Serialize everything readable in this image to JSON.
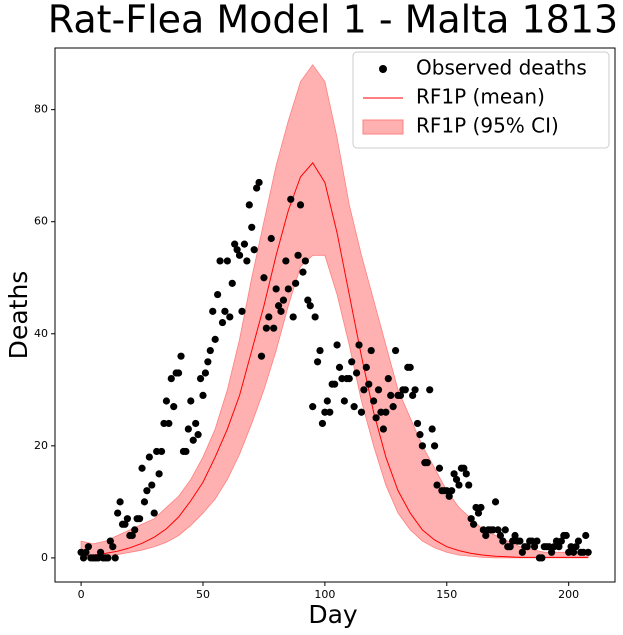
{
  "chart_data": {
    "type": "line",
    "title": "Rat-Flea Model 1 - Malta 1813",
    "x_label": "Day",
    "y_label": "Deaths",
    "xlim": [
      -10.7,
      219
    ],
    "ylim": [
      -4.3,
      91
    ],
    "xticks": [
      0,
      50,
      100,
      150,
      200
    ],
    "yticks": [
      0,
      20,
      40,
      60,
      80
    ],
    "grid": false,
    "legend": "upper right",
    "series": [
      {
        "name": "Observed deaths",
        "kind": "marker",
        "color": "#000000",
        "x": [
          0,
          1,
          2,
          3,
          4,
          5,
          6,
          7,
          8,
          9,
          10,
          11,
          12,
          13,
          14,
          15,
          16,
          17,
          18,
          19,
          20,
          21,
          22,
          23,
          24,
          25,
          26,
          27,
          28,
          29,
          30,
          31,
          32,
          33,
          34,
          35,
          36,
          37,
          38,
          39,
          40,
          41,
          42,
          43,
          44,
          45,
          46,
          47,
          48,
          49,
          50,
          51,
          52,
          53,
          54,
          55,
          56,
          57,
          58,
          59,
          60,
          61,
          62,
          63,
          64,
          65,
          66,
          67,
          68,
          69,
          70,
          71,
          72,
          73,
          74,
          75,
          76,
          77,
          78,
          79,
          80,
          81,
          82,
          83,
          84,
          85,
          86,
          87,
          88,
          89,
          90,
          91,
          92,
          93,
          94,
          95,
          96,
          97,
          98,
          99,
          100,
          101,
          102,
          103,
          104,
          105,
          106,
          107,
          108,
          109,
          110,
          111,
          112,
          113,
          114,
          115,
          116,
          117,
          118,
          119,
          120,
          121,
          122,
          123,
          124,
          125,
          126,
          127,
          128,
          129,
          130,
          131,
          132,
          133,
          134,
          135,
          136,
          137,
          138,
          139,
          140,
          141,
          142,
          143,
          144,
          145,
          146,
          147,
          148,
          149,
          150,
          151,
          152,
          153,
          154,
          155,
          156,
          157,
          158,
          159,
          160,
          161,
          162,
          163,
          164,
          165,
          166,
          167,
          168,
          169,
          170,
          171,
          172,
          173,
          174,
          175,
          176,
          177,
          178,
          179,
          180,
          181,
          182,
          183,
          184,
          185,
          186,
          187,
          188,
          189,
          190,
          191,
          192,
          193,
          194,
          195,
          196,
          197,
          198,
          199,
          200,
          201,
          202,
          203,
          204,
          205,
          206,
          207,
          208
        ],
        "values": [
          1,
          0,
          1,
          2,
          0,
          0,
          0,
          0,
          1,
          0,
          0,
          0,
          3,
          2,
          0,
          8,
          10,
          6,
          6,
          7,
          4,
          4,
          5,
          7,
          7,
          16,
          10,
          12,
          18,
          13,
          8,
          19,
          15,
          19,
          24,
          28,
          24,
          32,
          27,
          33,
          33,
          36,
          19,
          19,
          23,
          28,
          21,
          24,
          22,
          32,
          29,
          33,
          35,
          37,
          44,
          39,
          47,
          53,
          42,
          44,
          53,
          43,
          49,
          56,
          55,
          54,
          44,
          56,
          53,
          63,
          59,
          55,
          66,
          67,
          36,
          50,
          41,
          43,
          57,
          41,
          48,
          45,
          44,
          46,
          53,
          48,
          64,
          43,
          49,
          54,
          63,
          51,
          53,
          46,
          45,
          27,
          43,
          35,
          37,
          24,
          26,
          28,
          26,
          31,
          31,
          38,
          34,
          32,
          28,
          32,
          32,
          35,
          27,
          33,
          38,
          26,
          30,
          34,
          31,
          37,
          28,
          25,
          30,
          26,
          23,
          26,
          32,
          29,
          27,
          37,
          29,
          29,
          30,
          30,
          34,
          34,
          29,
          30,
          24,
          22,
          20,
          17,
          17,
          30,
          23,
          20,
          13,
          16,
          12,
          12,
          12,
          11,
          12,
          15,
          14,
          13,
          16,
          16,
          15,
          13,
          7,
          6,
          9,
          8,
          9,
          5,
          4,
          5,
          5,
          5,
          10,
          5,
          4,
          3,
          5,
          2,
          2,
          3,
          4,
          3,
          3,
          1,
          2,
          2,
          3,
          3,
          2,
          3,
          0,
          0,
          2,
          2,
          2,
          1,
          2,
          3,
          2,
          3,
          4,
          4,
          1,
          2,
          1,
          2,
          3,
          1,
          1,
          4,
          1
        ]
      },
      {
        "name": "RF1P (mean)",
        "kind": "line",
        "color": "#ff0000",
        "x": [
          0,
          5,
          10,
          15,
          20,
          25,
          30,
          35,
          40,
          45,
          50,
          55,
          60,
          65,
          70,
          75,
          80,
          85,
          90,
          95,
          100,
          105,
          110,
          115,
          120,
          125,
          130,
          135,
          140,
          145,
          150,
          155,
          160,
          165,
          170,
          175,
          180,
          185,
          190,
          195,
          200,
          205,
          208
        ],
        "values": [
          0.3,
          0.5,
          0.8,
          1.2,
          1.8,
          2.6,
          3.7,
          5.2,
          7.3,
          10.2,
          13.5,
          18,
          23,
          29,
          37,
          45,
          54,
          62,
          68,
          70.5,
          67,
          58,
          47,
          36,
          26,
          18,
          12,
          8,
          5,
          3.2,
          2,
          1.3,
          0.8,
          0.5,
          0.3,
          0.2,
          0.1,
          0.1,
          0.1,
          0.1,
          0.1,
          0.1,
          0.1
        ]
      },
      {
        "name": "RF1P (95% CI)",
        "kind": "band",
        "color": "#ffb0b0",
        "edge": "#ff8080",
        "x": [
          0,
          5,
          10,
          15,
          20,
          25,
          30,
          35,
          40,
          45,
          50,
          55,
          60,
          65,
          70,
          75,
          80,
          85,
          90,
          95,
          100,
          105,
          110,
          115,
          120,
          125,
          130,
          135,
          140,
          145,
          150,
          155,
          160,
          165,
          170,
          175,
          180,
          185,
          190,
          195,
          200,
          205,
          208
        ],
        "lower": [
          0,
          0.1,
          0.3,
          0.6,
          1,
          1.4,
          2,
          2.8,
          4,
          5.8,
          8,
          10.5,
          14,
          18.5,
          24,
          30,
          37,
          45,
          52,
          54,
          54,
          47,
          38,
          28,
          20,
          13,
          8,
          5,
          3,
          1.8,
          1,
          0.5,
          0.3,
          0.1,
          0,
          0,
          0,
          0,
          0,
          0,
          0,
          0,
          0
        ],
        "upper": [
          3,
          2.5,
          3,
          4,
          5,
          6,
          7,
          9,
          11,
          14,
          18,
          23,
          30,
          39,
          50,
          60,
          70,
          78,
          85,
          88,
          85,
          75,
          63,
          54,
          46,
          38,
          30,
          25,
          20,
          16,
          12,
          9,
          7,
          5,
          4,
          3,
          2,
          1.5,
          1,
          1,
          1,
          1,
          1
        ]
      }
    ]
  }
}
